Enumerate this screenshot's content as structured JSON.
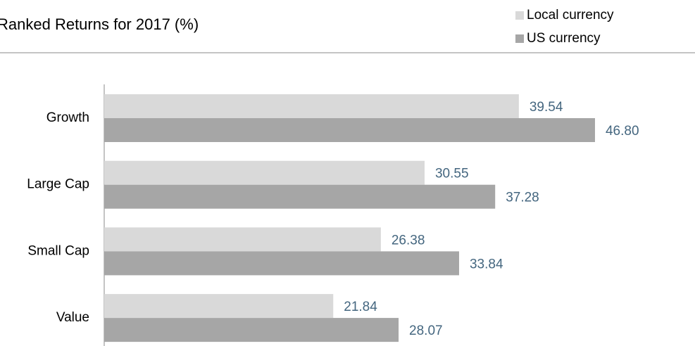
{
  "chart_data": {
    "type": "bar",
    "orientation": "horizontal",
    "title": "Ranked Returns for 2017 (%)",
    "categories": [
      "Growth",
      "Large Cap",
      "Small Cap",
      "Value"
    ],
    "series": [
      {
        "name": "Local currency",
        "color": "#d9d9d9",
        "values": [
          39.54,
          30.55,
          26.38,
          21.84
        ],
        "value_labels": [
          "39.54",
          "30.55",
          "26.38",
          "21.84"
        ]
      },
      {
        "name": "US currency",
        "color": "#a6a6a6",
        "values": [
          46.8,
          37.28,
          33.84,
          28.07
        ],
        "value_labels": [
          "46.80",
          "37.28",
          "33.84",
          "28.07"
        ]
      }
    ],
    "xlim": [
      0,
      56
    ],
    "legend": "top-right",
    "label_color": "#44667f"
  }
}
